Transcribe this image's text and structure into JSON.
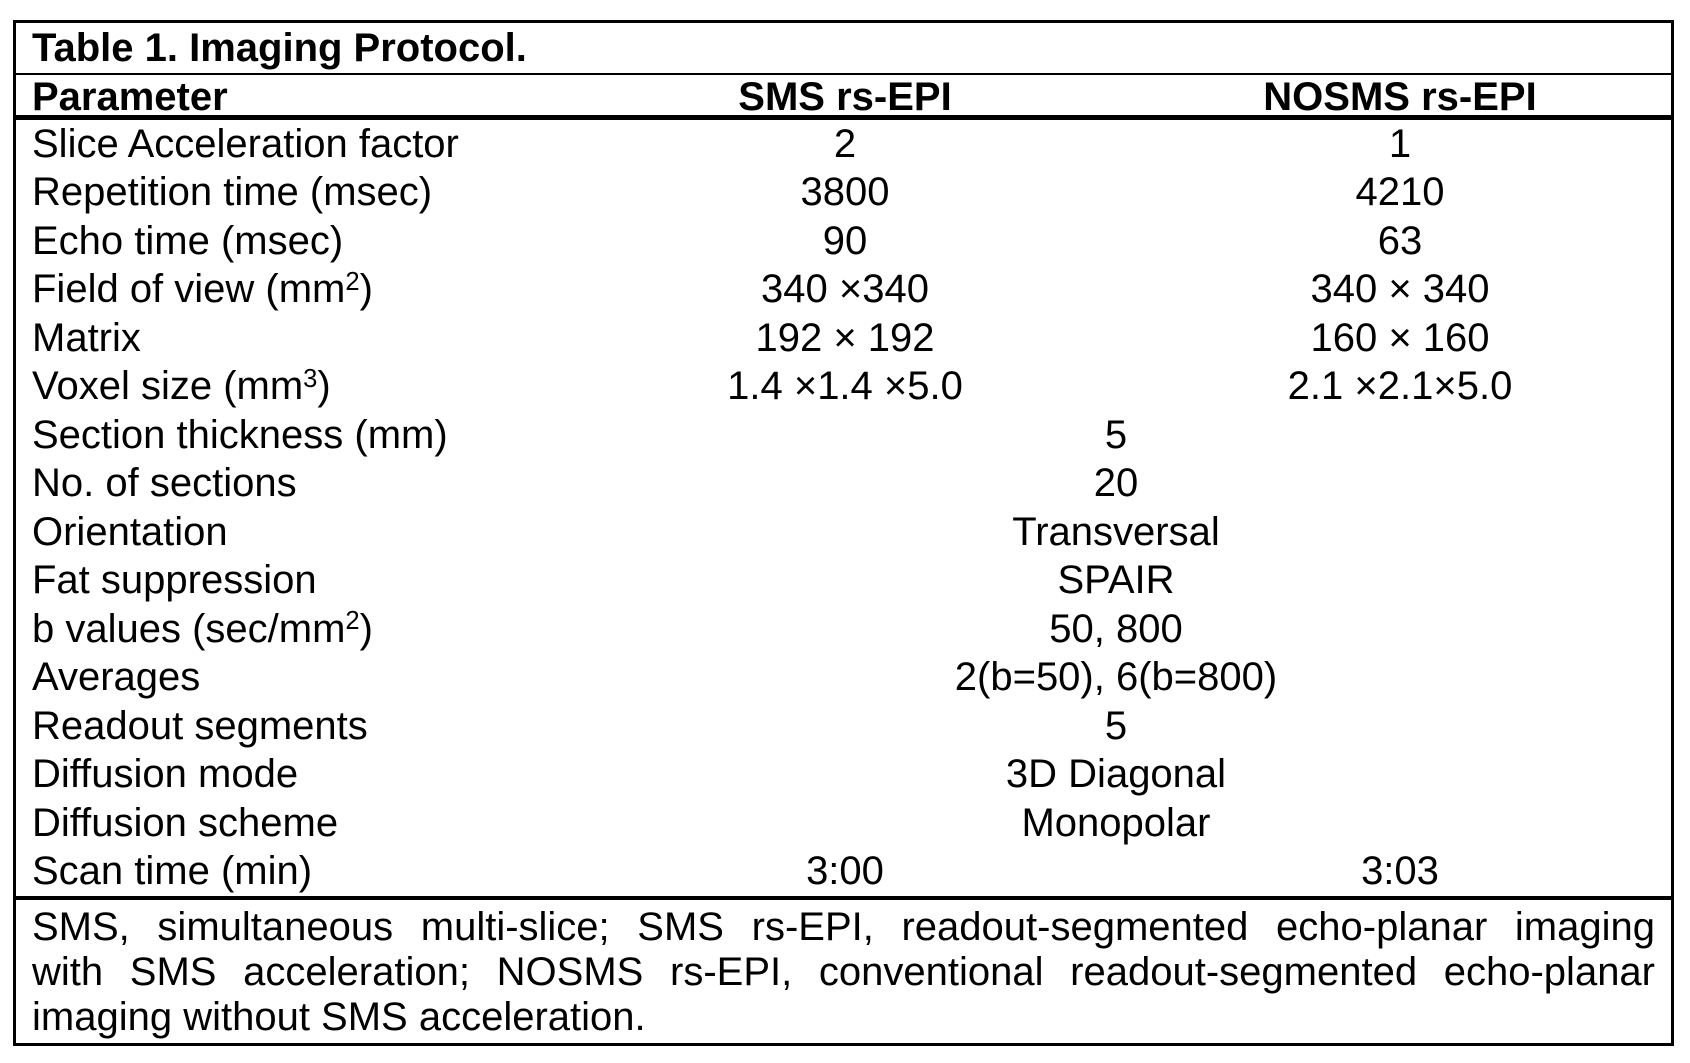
{
  "table": {
    "title": "Table 1. Imaging Protocol.",
    "columns": [
      "Parameter",
      "SMS rs-EPI",
      "NOSMS rs-EPI"
    ],
    "rows": [
      {
        "param": [
          {
            "t": "Slice Acceleration factor"
          }
        ],
        "sms": "2",
        "nosms": "1"
      },
      {
        "param": [
          {
            "t": "Repetition time (msec)"
          }
        ],
        "sms": "3800",
        "nosms": "4210"
      },
      {
        "param": [
          {
            "t": "Echo time (msec)"
          }
        ],
        "sms": "90",
        "nosms": "63"
      },
      {
        "param": [
          {
            "t": "Field of view (mm"
          },
          {
            "t": "2",
            "sup": true
          },
          {
            "t": ")"
          }
        ],
        "sms": "340 ×340",
        "nosms": "340 × 340"
      },
      {
        "param": [
          {
            "t": "Matrix"
          }
        ],
        "sms": "192 × 192",
        "nosms": "160 × 160"
      },
      {
        "param": [
          {
            "t": "Voxel size (mm"
          },
          {
            "t": "3",
            "sup": true
          },
          {
            "t": ")"
          }
        ],
        "sms": "1.4 ×1.4 ×5.0",
        "nosms": "2.1 ×2.1×5.0"
      },
      {
        "param": [
          {
            "t": "Section thickness (mm)"
          }
        ],
        "merged": "5"
      },
      {
        "param": [
          {
            "t": "No. of sections"
          }
        ],
        "merged": "20"
      },
      {
        "param": [
          {
            "t": "Orientation"
          }
        ],
        "merged": "Transversal"
      },
      {
        "param": [
          {
            "t": "Fat suppression"
          }
        ],
        "merged": "SPAIR"
      },
      {
        "param": [
          {
            "t": "b values (sec/mm"
          },
          {
            "t": "2",
            "sup": true
          },
          {
            "t": ")"
          }
        ],
        "merged": "50, 800"
      },
      {
        "param": [
          {
            "t": "Averages"
          }
        ],
        "merged": "2(b=50), 6(b=800)"
      },
      {
        "param": [
          {
            "t": "Readout segments"
          }
        ],
        "merged": "5"
      },
      {
        "param": [
          {
            "t": "Diffusion mode"
          }
        ],
        "merged": "3D Diagonal"
      },
      {
        "param": [
          {
            "t": "Diffusion scheme"
          }
        ],
        "merged": "Monopolar"
      },
      {
        "param": [
          {
            "t": "Scan time (min)"
          }
        ],
        "sms": "3:00",
        "nosms": "3:03"
      }
    ],
    "footnote_lines": [
      "SMS, simultaneous multi-slice; SMS rs-EPI, readout-segmented echo-planar imaging",
      "with SMS acceleration; NOSMS rs-EPI, conventional readout-segmented echo-planar",
      "imaging without SMS acceleration."
    ],
    "colors": {
      "text": "#000000",
      "background": "#ffffff",
      "border": "#000000"
    }
  }
}
